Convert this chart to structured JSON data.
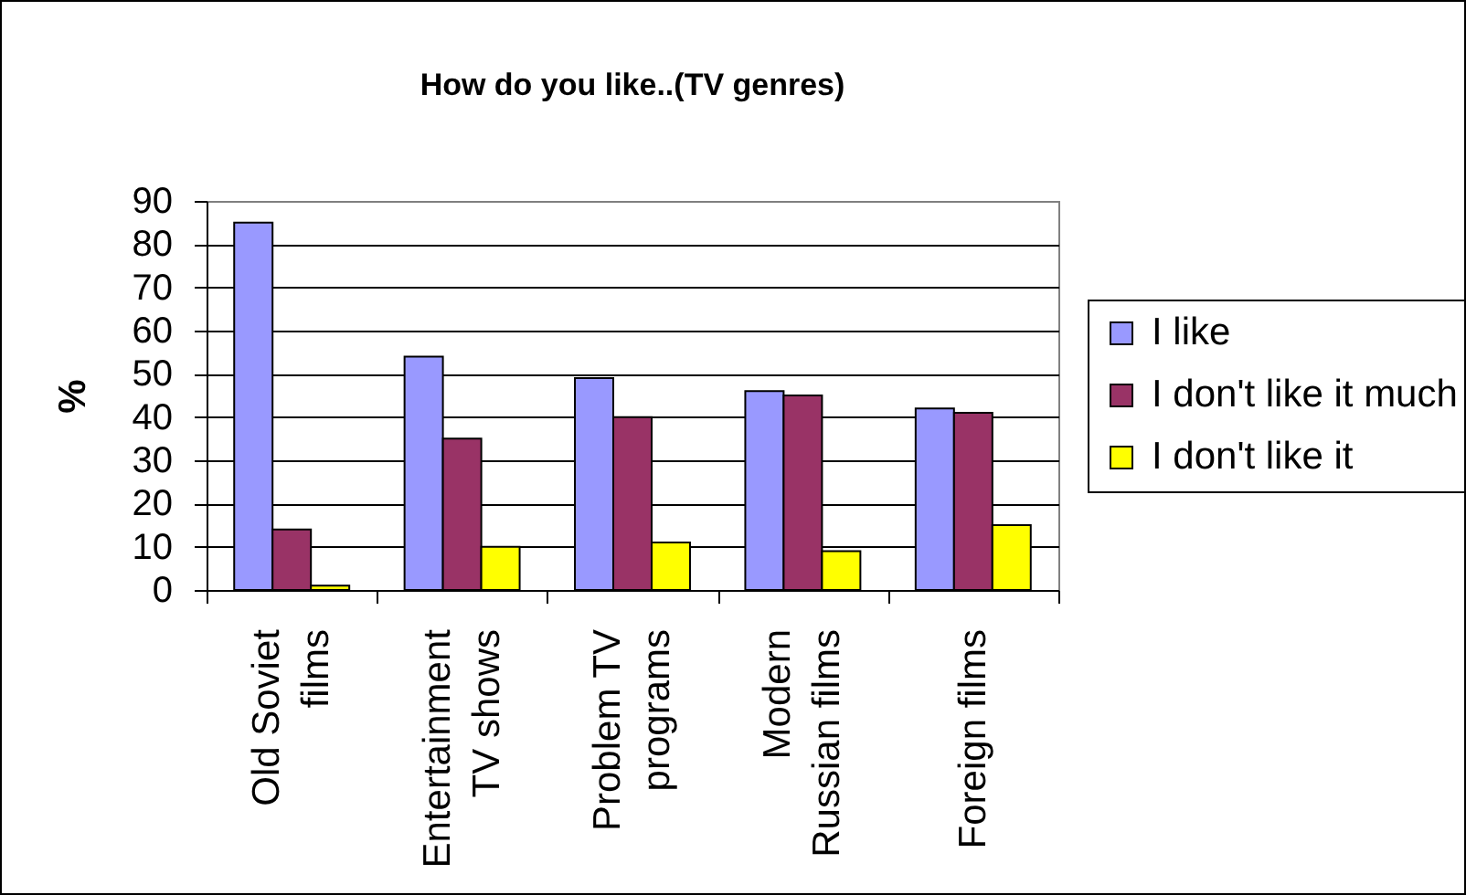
{
  "chart_data": {
    "type": "bar",
    "title": "How do you like..(TV genres)",
    "ylabel": "%",
    "categories": [
      "Old Soviet films",
      "Entertainment TV shows",
      "Problem TV programs",
      "Modern Russian films",
      "Foreign films"
    ],
    "series": [
      {
        "name": "I like",
        "color": "#9999ff",
        "values": [
          85,
          54,
          49,
          46,
          42
        ]
      },
      {
        "name": "I don't like it much",
        "color": "#993366",
        "values": [
          14,
          35,
          40,
          45,
          41
        ]
      },
      {
        "name": "I don't like it",
        "color": "#ffff00",
        "values": [
          1,
          10,
          11,
          9,
          15
        ]
      }
    ],
    "ylim": [
      0,
      90
    ],
    "yticks": [
      0,
      10,
      20,
      30,
      40,
      50,
      60,
      70,
      80,
      90
    ],
    "grid": "y",
    "legend": "right"
  }
}
